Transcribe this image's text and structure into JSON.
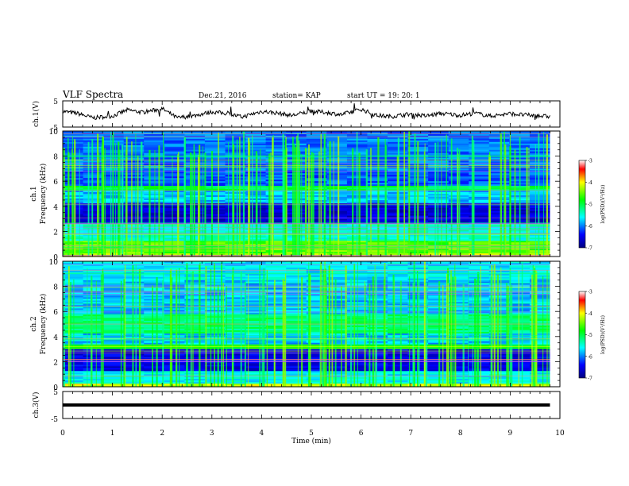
{
  "header": {
    "title": "VLF Spectra",
    "date": "Dec.21, 2016",
    "station": "station= KAP",
    "start_time": "start  UT =   19: 20: 1"
  },
  "chart_data": [
    {
      "type": "line",
      "panel": "ch1-waveform",
      "ylabel": "ch.1(V)",
      "ylim": [
        -5,
        5
      ],
      "yticks": [
        "5",
        "-5"
      ],
      "xlim": [
        0,
        10
      ],
      "description_values_note": "noisy trace around 0 V",
      "x": [
        0.0,
        0.3,
        0.6,
        1.0,
        1.3,
        1.6,
        2.0,
        2.3,
        2.6,
        3.0,
        3.3,
        3.6,
        4.0,
        4.3,
        4.6,
        5.0,
        5.3,
        5.6,
        6.0,
        6.3,
        6.6,
        7.0,
        7.3,
        7.6,
        8.0,
        8.3,
        8.6,
        9.0,
        9.3,
        9.8
      ],
      "y": [
        1.0,
        0.2,
        -1.5,
        -0.8,
        1.5,
        0.6,
        2.0,
        -1.5,
        -0.8,
        0.8,
        0.2,
        -1.2,
        1.0,
        0.4,
        -0.6,
        1.0,
        0.6,
        -0.3,
        1.8,
        -0.5,
        -1.0,
        0.0,
        -0.8,
        0.2,
        -0.5,
        0.3,
        -0.8,
        0.1,
        -0.4,
        -1.0
      ]
    },
    {
      "type": "heatmap",
      "panel": "ch1-spectrogram",
      "ylabel_top": "ch.1",
      "ylabel": "Frequency (kHz)",
      "ylim": [
        0,
        10
      ],
      "yticks": [
        "0",
        "2",
        "4",
        "6",
        "8",
        "10"
      ],
      "xlim": [
        0,
        10
      ],
      "colorbar": {
        "label": "log(PSD)(V²/Hz)",
        "range": [
          -7,
          -3
        ],
        "ticks": [
          "-3",
          "-4",
          "-5",
          "-6",
          "-7"
        ]
      }
    },
    {
      "type": "heatmap",
      "panel": "ch2-spectrogram",
      "ylabel_top": "ch.2",
      "ylabel": "Frequency (kHz)",
      "ylim": [
        0,
        10
      ],
      "yticks": [
        "0",
        "2",
        "4",
        "6",
        "8",
        "10"
      ],
      "xlim": [
        0,
        10
      ],
      "colorbar": {
        "label": "log(PSD)(V²/Hz)",
        "range": [
          -7,
          -3
        ],
        "ticks": [
          "-3",
          "-4",
          "-5",
          "-6",
          "-7"
        ]
      }
    },
    {
      "type": "line",
      "panel": "ch3-waveform",
      "ylabel": "ch.3(V)",
      "ylim": [
        -5,
        5
      ],
      "yticks": [
        "5",
        "-5"
      ],
      "xlim": [
        0,
        10
      ],
      "x": [
        0,
        9.8
      ],
      "y": [
        0,
        0
      ]
    }
  ],
  "xaxis": {
    "label": "Time (min)",
    "ticks": [
      "0",
      "1",
      "2",
      "3",
      "4",
      "5",
      "6",
      "7",
      "8",
      "9",
      "10"
    ]
  },
  "colors": {
    "deep_blue": "#00007f",
    "blue": "#0000ff",
    "cyan": "#00ffff",
    "green": "#00ff00",
    "yellow": "#ffff00",
    "red": "#ff0000"
  }
}
